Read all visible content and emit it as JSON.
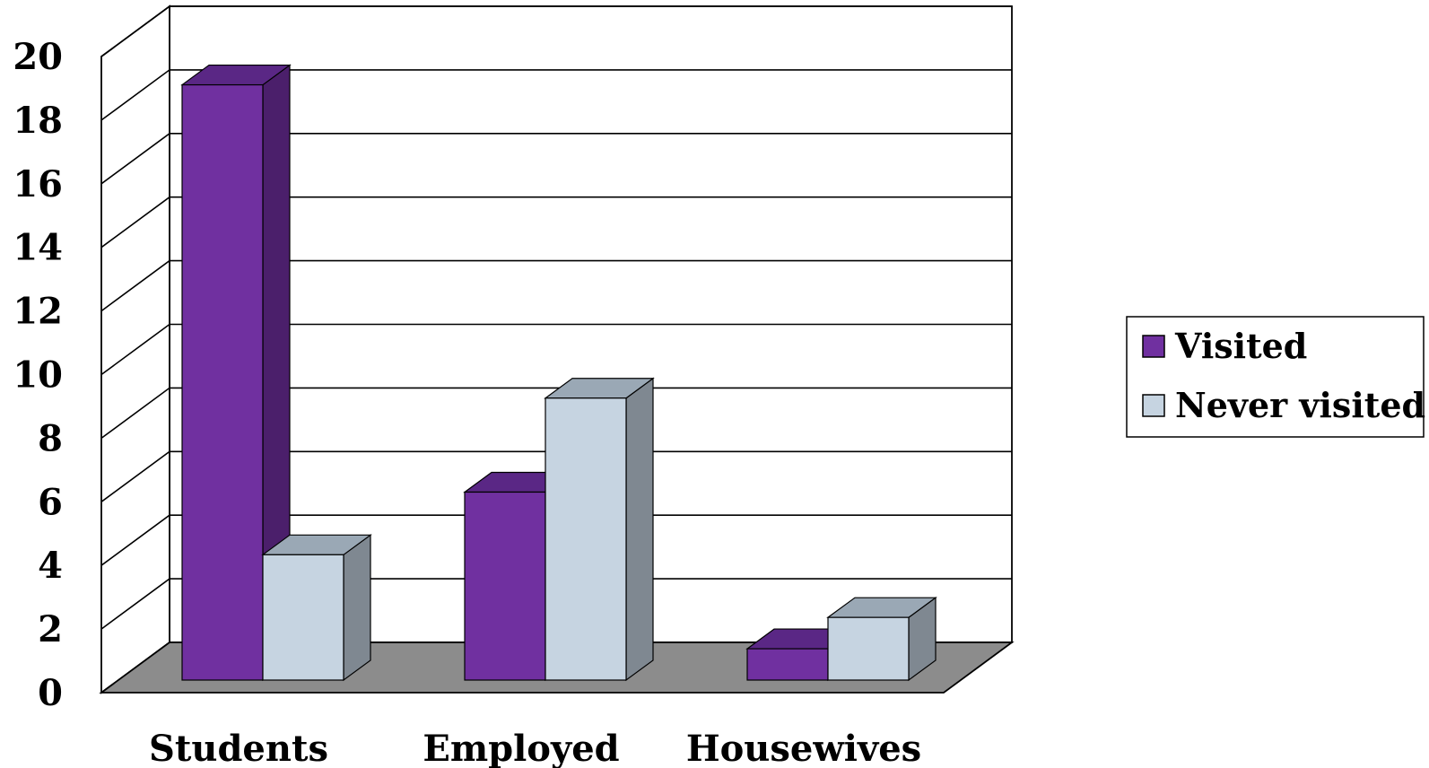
{
  "chart_data": {
    "type": "bar",
    "style": "3d-clustered-column",
    "categories": [
      "Students",
      "Employed",
      "Housewives"
    ],
    "series": [
      {
        "name": "Visited",
        "values": [
          19,
          6,
          1
        ],
        "color": "#7030A0",
        "side_color": "#4B1F6B",
        "top_color": "#5A2785"
      },
      {
        "name": "Never visited",
        "values": [
          4,
          9,
          2
        ],
        "color": "#C6D4E1",
        "side_color": "#7F8891",
        "top_color": "#9AA8B5"
      }
    ],
    "y_ticks": [
      "0",
      "2",
      "4",
      "6",
      "8",
      "10",
      "12",
      "14",
      "16",
      "18",
      "20"
    ],
    "ylim": [
      0,
      20
    ],
    "grid": true,
    "legend_position": "right",
    "title": "",
    "xlabel": "",
    "ylabel": "",
    "floor_color": "#8C8C8C"
  }
}
